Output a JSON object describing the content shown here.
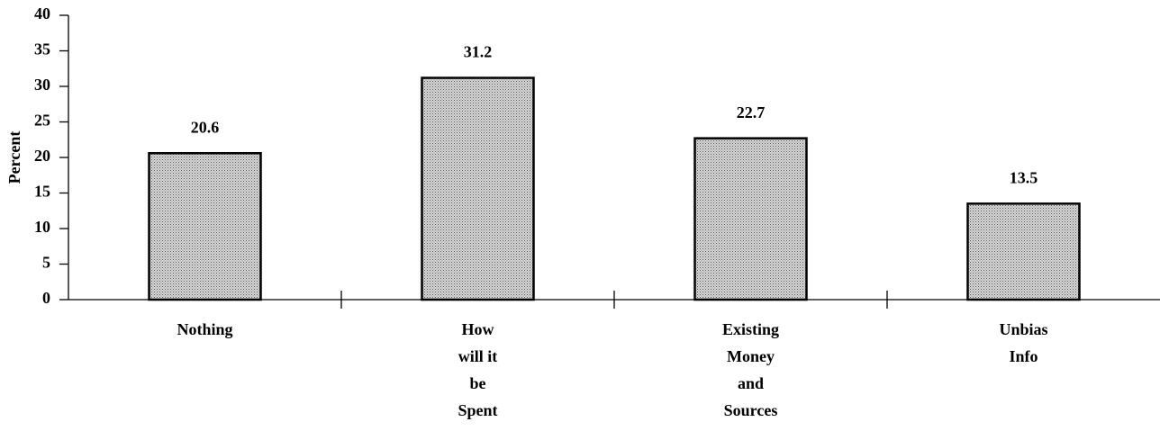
{
  "chart_data": {
    "type": "bar",
    "y_label": "Percent",
    "categories": [
      [
        "Nothing"
      ],
      [
        "How",
        "will it",
        "be",
        "Spent"
      ],
      [
        "Existing",
        "Money",
        "and",
        "Sources"
      ],
      [
        "Unbias",
        "Info"
      ]
    ],
    "values": [
      20.6,
      31.2,
      22.7,
      13.5
    ],
    "color": "#bdbdbd",
    "ylim": [
      0,
      40
    ],
    "yticks": [
      0,
      5,
      10,
      15,
      20,
      25,
      30,
      35,
      40
    ]
  }
}
